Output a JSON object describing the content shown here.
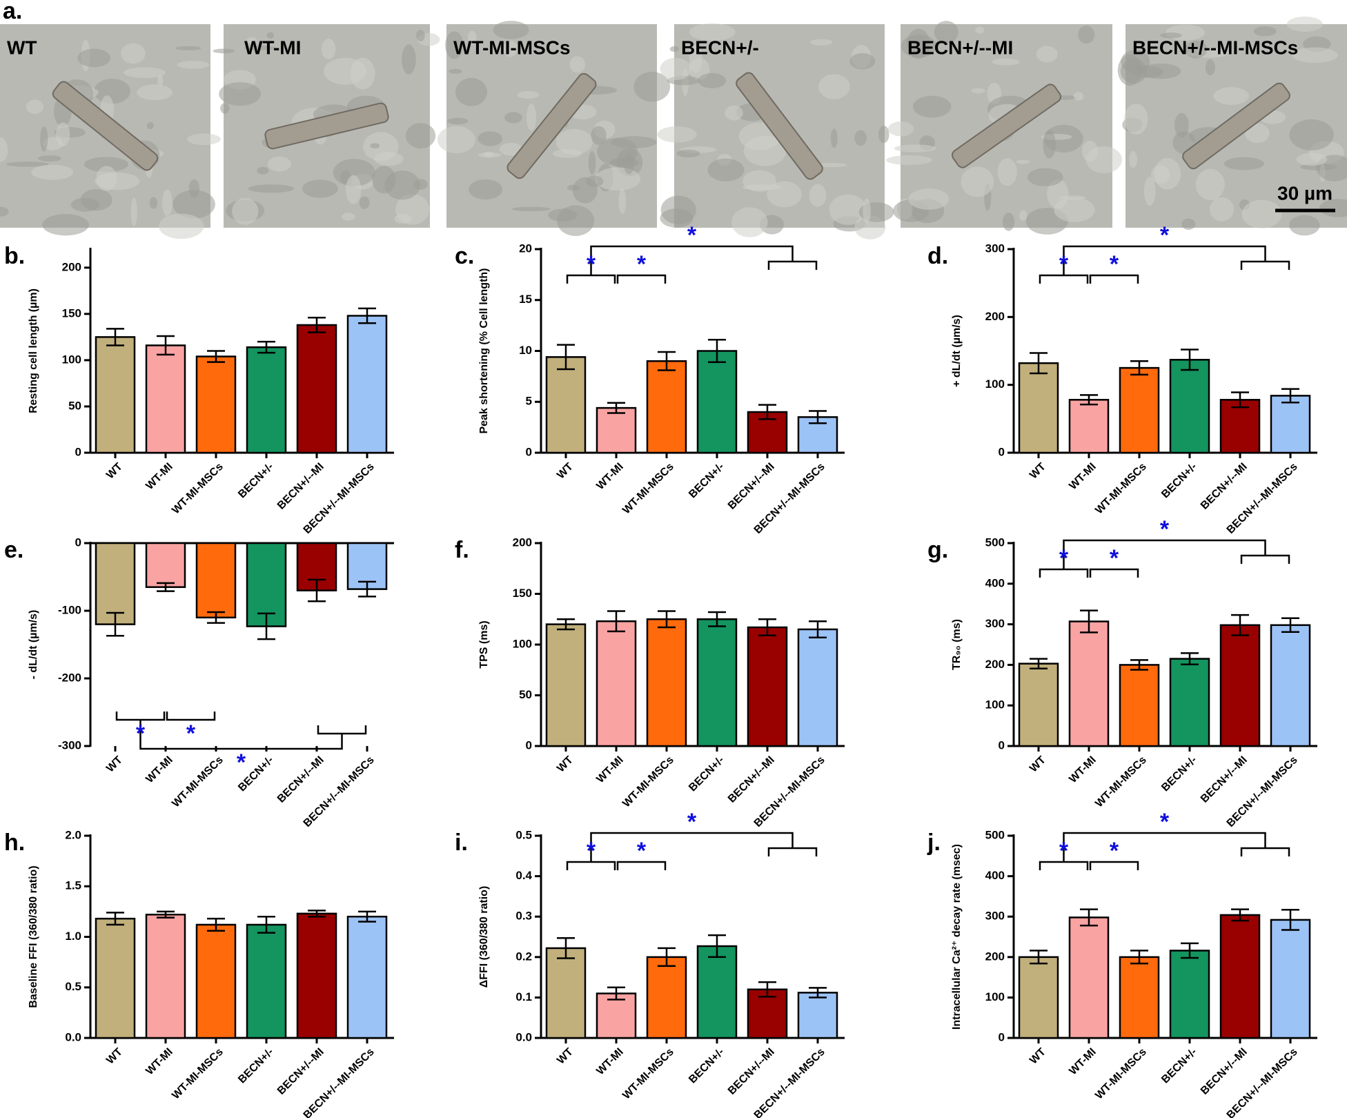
{
  "panel_a": {
    "label": "a.",
    "images": [
      "WT",
      "WT-MI",
      "WT-MI-MSCs",
      "BECN+/-",
      "BECN+/--MI",
      "BECN+/--MI-MSCs"
    ],
    "scale_bar": "30 µm"
  },
  "chart_data": [
    {
      "type": "bar",
      "panel": "b.",
      "ylabel": "Resting cell length (µm)",
      "categories": [
        "WT",
        "WT-MI",
        "WT-MI-MSCs",
        "BECN+/-",
        "BECN+/--MI",
        "BECN+/--MI-MSCs"
      ],
      "values": [
        125,
        116,
        104,
        114,
        138,
        148
      ],
      "errors": [
        9,
        10,
        6,
        6,
        8,
        8
      ],
      "colors": [
        "#c1b07c",
        "#f9a3a3",
        "#ff6a0d",
        "#14945f",
        "#990000",
        "#9cc3f5"
      ],
      "ylim": [
        0,
        220
      ],
      "yticks": [
        0,
        50,
        100,
        150,
        200
      ]
    },
    {
      "type": "bar",
      "panel": "c.",
      "ylabel": "Peak shortening (% Cell length)",
      "categories": [
        "WT",
        "WT-MI",
        "WT-MI-MSCs",
        "BECN+/-",
        "BECN+/--MI",
        "BECN+/--MI-MSCs"
      ],
      "values": [
        9.4,
        4.4,
        9.0,
        10.0,
        4.0,
        3.5
      ],
      "errors": [
        1.2,
        0.5,
        0.9,
        1.1,
        0.7,
        0.6
      ],
      "colors": [
        "#c1b07c",
        "#f9a3a3",
        "#ff6a0d",
        "#14945f",
        "#990000",
        "#9cc3f5"
      ],
      "ylim": [
        0,
        20
      ],
      "yticks": [
        0,
        5,
        10,
        15,
        20
      ],
      "annotations": [
        "*",
        "*",
        "*"
      ]
    },
    {
      "type": "bar",
      "panel": "d.",
      "ylabel": "+ dL/dt (µm/s)",
      "categories": [
        "WT",
        "WT-MI",
        "WT-MI-MSCs",
        "BECN+/-",
        "BECN+/--MI",
        "BECN+/--MI-MSCs"
      ],
      "values": [
        132,
        78,
        125,
        137,
        78,
        84
      ],
      "errors": [
        15,
        7,
        10,
        15,
        11,
        10
      ],
      "colors": [
        "#c1b07c",
        "#f9a3a3",
        "#ff6a0d",
        "#14945f",
        "#990000",
        "#9cc3f5"
      ],
      "ylim": [
        0,
        300
      ],
      "yticks": [
        0,
        100,
        200,
        300
      ],
      "annotations": [
        "*",
        "*",
        "*"
      ]
    },
    {
      "type": "bar",
      "panel": "e.",
      "ylabel": "- dL/dt (µm/s)",
      "categories": [
        "WT",
        "WT-MI",
        "WT-MI-MSCs",
        "BECN+/-",
        "BECN+/--MI",
        "BECN+/--MI-MSCs"
      ],
      "values": [
        -120,
        -65,
        -110,
        -123,
        -70,
        -68
      ],
      "errors": [
        17,
        6,
        8,
        19,
        16,
        11
      ],
      "colors": [
        "#c1b07c",
        "#f9a3a3",
        "#ff6a0d",
        "#14945f",
        "#990000",
        "#9cc3f5"
      ],
      "ylim": [
        -300,
        0
      ],
      "yticks": [
        -300,
        -200,
        -100,
        0
      ],
      "annotations": [
        "*",
        "*",
        "*"
      ]
    },
    {
      "type": "bar",
      "panel": "f.",
      "ylabel": "TPS (ms)",
      "categories": [
        "WT",
        "WT-MI",
        "WT-MI-MSCs",
        "BECN+/-",
        "BECN+/--MI",
        "BECN+/--MI-MSCs"
      ],
      "values": [
        120,
        123,
        125,
        125,
        117,
        115
      ],
      "errors": [
        5,
        10,
        8,
        7,
        8,
        8
      ],
      "colors": [
        "#c1b07c",
        "#f9a3a3",
        "#ff6a0d",
        "#14945f",
        "#990000",
        "#9cc3f5"
      ],
      "ylim": [
        0,
        200
      ],
      "yticks": [
        0,
        50,
        100,
        150,
        200
      ]
    },
    {
      "type": "bar",
      "panel": "g.",
      "ylabel": "TR₉₀ (ms)",
      "categories": [
        "WT",
        "WT-MI",
        "WT-MI-MSCs",
        "BECN+/-",
        "BECN+/--MI",
        "BECN+/--MI-MSCs"
      ],
      "values": [
        203,
        307,
        200,
        215,
        298,
        298
      ],
      "errors": [
        12,
        27,
        12,
        14,
        25,
        17
      ],
      "colors": [
        "#c1b07c",
        "#f9a3a3",
        "#ff6a0d",
        "#14945f",
        "#990000",
        "#9cc3f5"
      ],
      "ylim": [
        0,
        500
      ],
      "yticks": [
        0,
        100,
        200,
        300,
        400,
        500
      ],
      "annotations": [
        "*",
        "*",
        "*"
      ]
    },
    {
      "type": "bar",
      "panel": "h.",
      "ylabel": "Baseline FFI (360/380 ratio)",
      "categories": [
        "WT",
        "WT-MI",
        "WT-MI-MSCs",
        "BECN+/-",
        "BECN+/--MI",
        "BECN+/--MI-MSCs"
      ],
      "values": [
        1.18,
        1.22,
        1.12,
        1.12,
        1.23,
        1.2
      ],
      "errors": [
        0.06,
        0.03,
        0.06,
        0.08,
        0.03,
        0.05
      ],
      "colors": [
        "#c1b07c",
        "#f9a3a3",
        "#ff6a0d",
        "#14945f",
        "#990000",
        "#9cc3f5"
      ],
      "ylim": [
        0,
        2
      ],
      "yticks": [
        {
          "value": 0,
          "label": "0.0"
        },
        0.5,
        {
          "value": 1,
          "label": "1.0"
        },
        1.5,
        {
          "value": 2,
          "label": "2.0"
        }
      ]
    },
    {
      "type": "bar",
      "panel": "i.",
      "ylabel": "ΔFFI (360/380 ratio)",
      "categories": [
        "WT",
        "WT-MI",
        "WT-MI-MSCs",
        "BECN+/-",
        "BECN+/--MI",
        "BECN+/--MI-MSCs"
      ],
      "values": [
        0.222,
        0.11,
        0.2,
        0.227,
        0.12,
        0.112
      ],
      "errors": [
        0.025,
        0.015,
        0.022,
        0.027,
        0.018,
        0.012
      ],
      "colors": [
        "#c1b07c",
        "#f9a3a3",
        "#ff6a0d",
        "#14945f",
        "#990000",
        "#9cc3f5"
      ],
      "ylim": [
        0,
        0.5
      ],
      "yticks": [
        {
          "value": 0,
          "label": "0.0"
        },
        0.1,
        0.2,
        0.3,
        0.4,
        0.5
      ],
      "annotations": [
        "*",
        "*",
        "*"
      ]
    },
    {
      "type": "bar",
      "panel": "j.",
      "ylabel": "Intracellular Ca²⁺ decay rate (msec)",
      "categories": [
        "WT",
        "WT-MI",
        "WT-MI-MSCs",
        "BECN+/-",
        "BECN+/--MI",
        "BECN+/--MI-MSCs"
      ],
      "values": [
        200,
        298,
        200,
        216,
        304,
        292
      ],
      "errors": [
        16,
        20,
        16,
        18,
        14,
        25
      ],
      "colors": [
        "#c1b07c",
        "#f9a3a3",
        "#ff6a0d",
        "#14945f",
        "#990000",
        "#9cc3f5"
      ],
      "ylim": [
        0,
        500
      ],
      "yticks": [
        0,
        100,
        200,
        300,
        400,
        500
      ],
      "annotations": [
        "*",
        "*",
        "*"
      ]
    }
  ]
}
